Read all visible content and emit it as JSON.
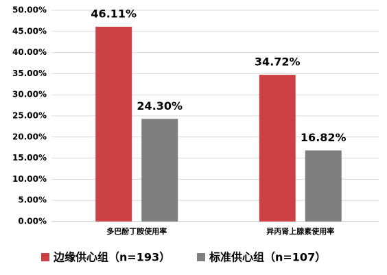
{
  "chart_data": {
    "type": "bar",
    "categories": [
      "多巴酚丁胺使用率",
      "异丙肾上腺素使用率"
    ],
    "series": [
      {
        "name": "边缘供心组（n=193）",
        "color": "#cc4146",
        "values": [
          46.11,
          34.72
        ],
        "value_labels": [
          "46.11%",
          "34.72%"
        ]
      },
      {
        "name": "标准供心组（n=107）",
        "color": "#7f7f7f",
        "values": [
          24.3,
          16.82
        ],
        "value_labels": [
          "24.30%",
          "16.82%"
        ]
      }
    ],
    "ylim": [
      0,
      50
    ],
    "yticks": [
      {
        "value": 0,
        "label": "0.00%"
      },
      {
        "value": 5,
        "label": "5.00%"
      },
      {
        "value": 10,
        "label": "10.00%"
      },
      {
        "value": 15,
        "label": "15.00%"
      },
      {
        "value": 20,
        "label": "20.00%"
      },
      {
        "value": 25,
        "label": "25.00%"
      },
      {
        "value": 30,
        "label": "30.00%"
      },
      {
        "value": 35,
        "label": "35.00%"
      },
      {
        "value": 40,
        "label": "40.00%"
      },
      {
        "value": 45,
        "label": "45.00%"
      },
      {
        "value": 50,
        "label": "50.00%"
      }
    ],
    "grid": true,
    "legend": "bottom"
  }
}
